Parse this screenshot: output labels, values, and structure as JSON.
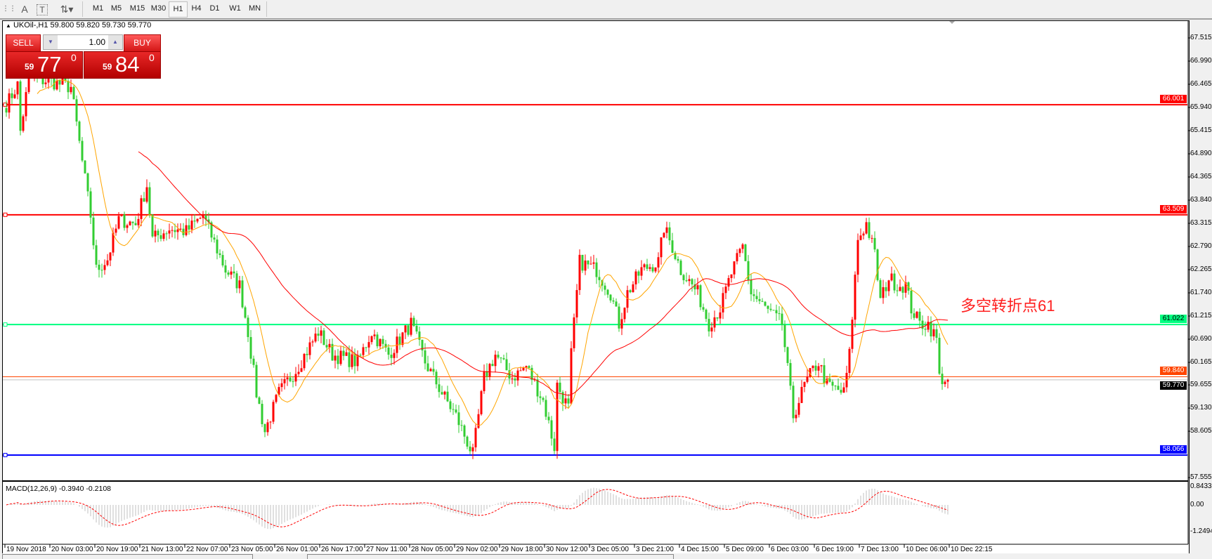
{
  "toolbar": {
    "icons": [
      "grid-icon",
      "text-a-icon",
      "text-box-icon",
      "arrows-icon"
    ],
    "timeframes": [
      "M1",
      "M5",
      "M15",
      "M30",
      "H1",
      "H4",
      "D1",
      "W1",
      "MN"
    ],
    "active_timeframe": "H1"
  },
  "chart": {
    "symbol_line": "UKOil-,H1  59.800 59.820 59.730 59.770",
    "bull_color": "#ff0000",
    "bear_color": "#32cd32",
    "price_axis": [
      "67.515",
      "66.990",
      "66.465",
      "65.940",
      "65.415",
      "64.890",
      "64.365",
      "63.840",
      "63.315",
      "62.790",
      "62.265",
      "61.740",
      "61.215",
      "60.690",
      "60.165",
      "59.655",
      "59.130",
      "58.605",
      "57.555"
    ],
    "time_axis": [
      "19 Nov 2018",
      "20 Nov 03:00",
      "20 Nov 19:00",
      "21 Nov 13:00",
      "22 Nov 07:00",
      "23 Nov 05:00",
      "26 Nov 01:00",
      "26 Nov 17:00",
      "27 Nov 11:00",
      "28 Nov 05:00",
      "29 Nov 02:00",
      "29 Nov 18:00",
      "30 Nov 12:00",
      "3 Dec 05:00",
      "3 Dec 21:00",
      "4 Dec 15:00",
      "5 Dec 09:00",
      "6 Dec 03:00",
      "6 Dec 19:00",
      "7 Dec 13:00",
      "10 Dec 06:00",
      "10 Dec 22:15"
    ],
    "horizontal_lines": [
      {
        "price": 66.001,
        "label": "66.001",
        "color": "#ff0000"
      },
      {
        "price": 63.509,
        "label": "63.509",
        "color": "#ff0000"
      },
      {
        "price": 61.022,
        "label": "61.022",
        "color": "#00ff7f"
      },
      {
        "price": 58.066,
        "label": "58.066",
        "color": "#0000ff"
      }
    ],
    "ask_line": {
      "price": 59.84,
      "label": "59.840",
      "color": "#ff4500"
    },
    "bid_line": {
      "price": 59.77,
      "label": "59.770",
      "color": "#c0c0c0"
    },
    "annotation": "多空转折点61",
    "price_outline": [
      [
        0,
        66.0
      ],
      [
        4,
        66.45
      ],
      [
        5,
        65.4
      ],
      [
        8,
        66.6
      ],
      [
        15,
        66.54
      ],
      [
        23,
        66.4
      ],
      [
        27,
        64.71
      ],
      [
        30,
        63.49
      ],
      [
        32,
        62.26
      ],
      [
        36,
        62.5
      ],
      [
        40,
        63.4
      ],
      [
        46,
        63.3
      ],
      [
        50,
        64.18
      ],
      [
        52,
        62.96
      ],
      [
        58,
        63.2
      ],
      [
        64,
        63.13
      ],
      [
        70,
        63.49
      ],
      [
        78,
        62.26
      ],
      [
        83,
        61.91
      ],
      [
        86,
        60.86
      ],
      [
        89,
        59.47
      ],
      [
        92,
        58.6
      ],
      [
        97,
        59.47
      ],
      [
        103,
        59.99
      ],
      [
        111,
        60.86
      ],
      [
        116,
        60.34
      ],
      [
        125,
        60.17
      ],
      [
        130,
        60.86
      ],
      [
        136,
        60.34
      ],
      [
        144,
        61.04
      ],
      [
        149,
        60.17
      ],
      [
        155,
        59.47
      ],
      [
        160,
        58.95
      ],
      [
        166,
        58.07
      ],
      [
        170,
        59.82
      ],
      [
        174,
        60.34
      ],
      [
        180,
        59.82
      ],
      [
        185,
        60.08
      ],
      [
        191,
        59.3
      ],
      [
        195,
        58.25
      ],
      [
        196,
        59.65
      ],
      [
        200,
        59.12
      ],
      [
        201,
        60.34
      ],
      [
        204,
        62.44
      ],
      [
        210,
        62.26
      ],
      [
        215,
        61.74
      ],
      [
        218,
        61.04
      ],
      [
        221,
        61.74
      ],
      [
        226,
        62.26
      ],
      [
        232,
        62.44
      ],
      [
        234,
        63.22
      ],
      [
        237,
        62.78
      ],
      [
        240,
        62.26
      ],
      [
        246,
        61.74
      ],
      [
        250,
        61.04
      ],
      [
        254,
        61.39
      ],
      [
        258,
        62.18
      ],
      [
        262,
        62.78
      ],
      [
        265,
        61.74
      ],
      [
        270,
        61.39
      ],
      [
        276,
        61.04
      ],
      [
        278,
        59.99
      ],
      [
        280,
        58.95
      ],
      [
        284,
        59.65
      ],
      [
        287,
        59.99
      ],
      [
        289,
        60.17
      ],
      [
        292,
        59.65
      ],
      [
        298,
        59.47
      ],
      [
        300,
        60.34
      ],
      [
        303,
        62.96
      ],
      [
        306,
        63.31
      ],
      [
        309,
        62.61
      ],
      [
        311,
        61.56
      ],
      [
        314,
        62.09
      ],
      [
        317,
        61.91
      ],
      [
        320,
        61.91
      ],
      [
        322,
        61.39
      ],
      [
        325,
        61.04
      ],
      [
        328,
        61.04
      ],
      [
        331,
        60.69
      ],
      [
        332,
        59.82
      ],
      [
        335,
        59.77
      ]
    ],
    "fast_ma_color": "#ffa500",
    "slow_ma_color": "#ff0000"
  },
  "trade_panel": {
    "sell_label": "SELL",
    "buy_label": "BUY",
    "volume": "1.00",
    "sell_price_prefix": "59",
    "sell_price_main": "77",
    "sell_price_super": "0",
    "buy_price_prefix": "59",
    "buy_price_main": "84",
    "buy_price_super": "0"
  },
  "macd": {
    "label": "MACD(12,26,9) -0.3940 -0.2108",
    "axis": [
      "0.8433",
      "0.00",
      "-1.2494"
    ],
    "histogram_color": "#c0c0c0",
    "signal_color": "#ff0000"
  }
}
